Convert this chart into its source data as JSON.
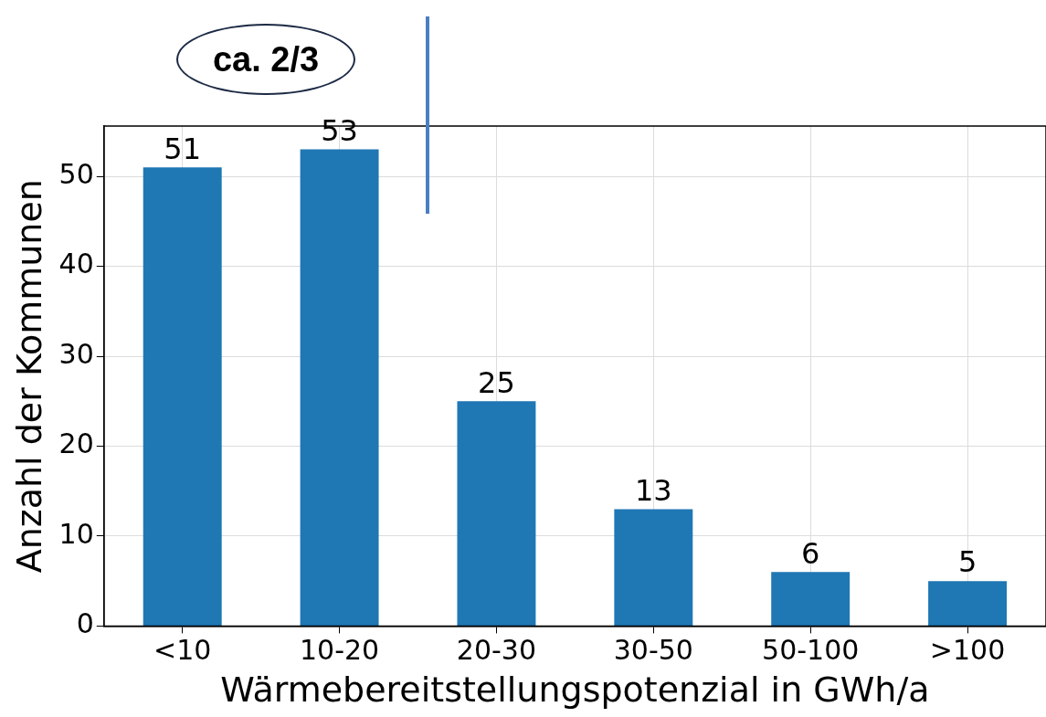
{
  "chart_data": {
    "type": "bar",
    "xlabel": "Wärmebereitstellungspotenzial in GWh/a",
    "ylabel": "Anzahl der Kommunen",
    "categories": [
      "<10",
      "10-20",
      "20-30",
      "30-50",
      "50-100",
      ">100"
    ],
    "values": [
      51,
      53,
      25,
      13,
      6,
      5
    ],
    "color": "#1f77b4",
    "ylim": [
      0,
      55.6
    ],
    "yticks": [
      0,
      10,
      20,
      30,
      40,
      50
    ],
    "grid": true,
    "data_labels": true,
    "annotations": [
      "ca. 2/3"
    ]
  }
}
